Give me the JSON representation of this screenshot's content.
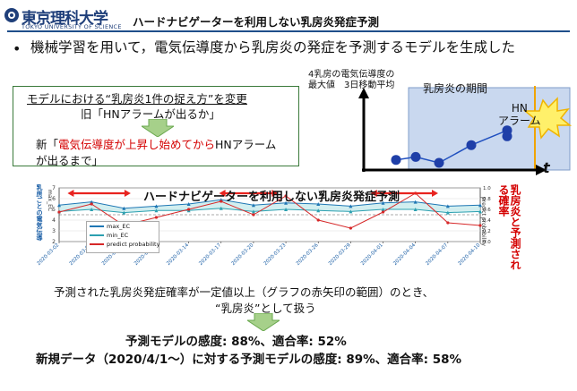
{
  "logo": {
    "name": "東京理科大学",
    "sub": "TOKYO UNIVERSITY OF SCIENCE"
  },
  "title": "ハードナビゲーターを利用しない乳房炎発症予測",
  "bullet": "機械学習を用いて，電気伝導度から乳房炎の発症を予測するモデルを生成した",
  "change": {
    "line1": "モデルにおける“乳房炎1件の捉え方”を変更",
    "line2": "旧「HNアラームが出るか」",
    "line3_prefix": "新「",
    "line3_red": "電気伝導度が上昇し始めてから",
    "line3_suffix": "HNアラームが出るまで」"
  },
  "schematic": {
    "ylabel_line1": "4乳房の電気伝導度の",
    "ylabel_line2": "最大値　3日移動平均",
    "period_label": "乳房炎の期間",
    "hn_label_line1": "HN",
    "hn_label_line2": "アラーム",
    "x_label": "t",
    "points": [
      0.05,
      0.1,
      0.0,
      0.3,
      0.55,
      0.45
    ]
  },
  "chart": {
    "title": "ハードナビゲーターを利用しない乳房炎発症予測",
    "ylabel_left": "乳房ごとの電気伝導",
    "ylabel_left_small": "max_EC",
    "ylabel_right": "乳房炎と予測される確率",
    "ylabel_right_small": "predict probability",
    "legend": [
      "max_EC",
      "min_EC",
      "predict probability"
    ],
    "x_ticks": [
      "2020-03-02",
      "2020-03-05",
      "2020-03-08",
      "2020-03-11",
      "2020-03-14",
      "2020-03-17",
      "2020-03-20",
      "2020-03-23",
      "2020-03-26",
      "2020-03-29",
      "2020-04-01",
      "2020-04-04",
      "2020-04-07",
      "2020-04-10"
    ],
    "y_left_ticks": [
      "2",
      "3",
      "4",
      "5",
      "6",
      "7"
    ],
    "y_right_ticks": [
      "0.0",
      "0.2",
      "0.4",
      "0.6",
      "0.8",
      "1.0"
    ],
    "colors": {
      "max": "#1f77b4",
      "min": "#2ca0b0",
      "prob": "#d62728",
      "arrow": "#e8231f"
    }
  },
  "chart_data": {
    "type": "line",
    "x": [
      "2020-03-02",
      "2020-03-05",
      "2020-03-08",
      "2020-03-11",
      "2020-03-14",
      "2020-03-17",
      "2020-03-20",
      "2020-03-23",
      "2020-03-26",
      "2020-03-29",
      "2020-04-01",
      "2020-04-04",
      "2020-04-07",
      "2020-04-10"
    ],
    "series": [
      {
        "name": "max_EC",
        "values": [
          5.4,
          5.7,
          5.1,
          5.3,
          5.5,
          5.9,
          5.4,
          5.6,
          5.5,
          5.3,
          5.6,
          5.7,
          5.3,
          5.4
        ]
      },
      {
        "name": "min_EC",
        "values": [
          4.8,
          5.0,
          4.7,
          4.9,
          4.9,
          5.1,
          4.8,
          5.0,
          4.9,
          4.8,
          5.0,
          5.0,
          4.7,
          4.8
        ]
      },
      {
        "name": "predict probability",
        "values": [
          0.55,
          0.7,
          0.3,
          0.45,
          0.6,
          0.75,
          0.5,
          0.85,
          0.4,
          0.25,
          0.55,
          0.9,
          0.35,
          0.3
        ]
      }
    ],
    "ylim": [
      2,
      7
    ],
    "y2lim": [
      0,
      1
    ]
  },
  "note": "予測された乳房炎発症確率が一定値以上（グラフの赤矢印の範囲）のとき、",
  "note2": "“乳房炎”として扱う",
  "result1": "予測モデルの感度: 88%、適合率: 52%",
  "result2": "新規データ（2020/4/1～）に対する予測モデルの感度: 89%、適合率: 58%"
}
